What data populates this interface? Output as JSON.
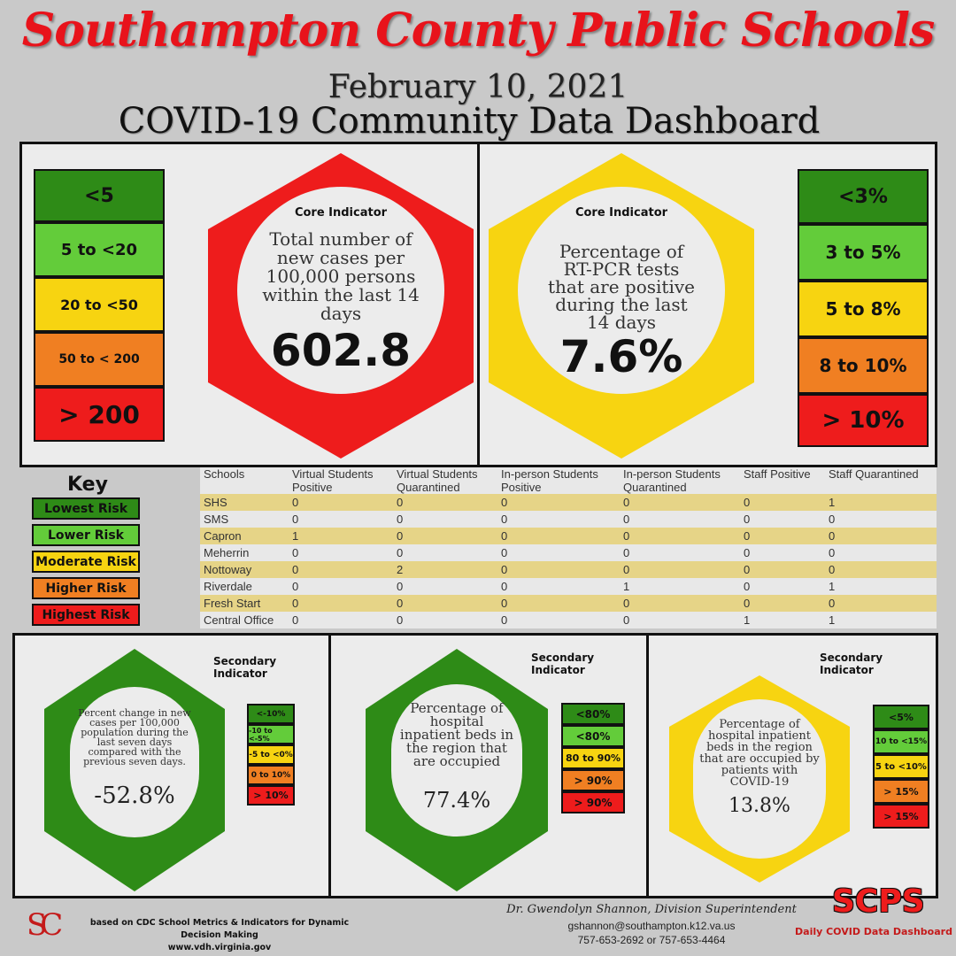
{
  "header": {
    "title": "Southampton County Public Schools",
    "date": "February 10, 2021",
    "subtitle": "COVID-19 Community Data Dashboard"
  },
  "core1": {
    "label": "Core Indicator",
    "description": "Total number of new cases per 100,000 persons within the last 14 days",
    "value": "602.8",
    "scale": [
      "<5",
      "5 to  <20",
      "20 to <50",
      "50 to < 200",
      "> 200"
    ],
    "color": "#ee1c1c"
  },
  "core2": {
    "label": "Core Indicator",
    "description": "Percentage of RT-PCR tests that are positive during the last 14 days",
    "value": "7.6%",
    "scale": [
      "<3%",
      "3 to 5%",
      "5 to 8%",
      "8 to 10%",
      "> 10%"
    ],
    "color": "#f7d411"
  },
  "key": {
    "title": "Key",
    "items": [
      "Lowest Risk",
      "Lower Risk",
      "Moderate Risk",
      "Higher Risk",
      "Highest Risk"
    ]
  },
  "schools": {
    "headers": [
      "Schools",
      "Virtual Students Positive",
      "Virtual Students Quarantined",
      "In-person Students Positive",
      "In-person Students Quarantined",
      "Staff Positive",
      "Staff Quarantined"
    ],
    "rows": [
      [
        "SHS",
        "0",
        "0",
        "0",
        "0",
        "0",
        "1"
      ],
      [
        "SMS",
        "0",
        "0",
        "0",
        "0",
        "0",
        "0"
      ],
      [
        "Capron",
        "1",
        "0",
        "0",
        "0",
        "0",
        "0"
      ],
      [
        "Meherrin",
        "0",
        "0",
        "0",
        "0",
        "0",
        "0"
      ],
      [
        "Nottoway",
        "0",
        "2",
        "0",
        "0",
        "0",
        "0"
      ],
      [
        "Riverdale",
        "0",
        "0",
        "0",
        "1",
        "0",
        "1"
      ],
      [
        "Fresh Start",
        "0",
        "0",
        "0",
        "0",
        "0",
        "0"
      ],
      [
        "Central Office",
        "0",
        "0",
        "0",
        "0",
        "1",
        "1"
      ]
    ]
  },
  "sec1": {
    "label": "Secondary Indicator",
    "description": "Percent change in new cases per 100,000 population during the last seven days compared with the previous seven days.",
    "value": "-52.8%",
    "scale": [
      "<-10%",
      "-10 to <-5%",
      "-5 to <0%",
      "0 to 10%",
      "> 10%"
    ],
    "color": "#2e8b17"
  },
  "sec2": {
    "label": "Secondary Indicator",
    "description": "Percentage of hospital inpatient beds in the region that are occupied",
    "value": "77.4%",
    "scale": [
      "<80%",
      "<80%",
      "80 to 90%",
      "> 90%",
      "> 90%"
    ],
    "color": "#2e8b17"
  },
  "sec3": {
    "label": "Secondary Indicator",
    "description": "Percentage of hospital inpatient beds in the region that are occupied by patients with COVID-19",
    "value": "13.8%",
    "scale": [
      "<5%",
      "10 to <15%",
      "5 to <10%",
      "> 15%",
      "> 15%"
    ],
    "color": "#f7d411"
  },
  "footer": {
    "logo": "SC",
    "source": "based on CDC School Metrics & Indicators for Dynamic Decision Making",
    "website": "www.vdh.virginia.gov",
    "superintendent": "Dr. Gwendolyn Shannon, Division Superintendent",
    "email": "gshannon@southampton.k12.va.us",
    "phone": "757-653-2692 or 757-653-4464",
    "scps": "SCPS",
    "scps_sub": "Daily COVID Data Dashboard"
  }
}
